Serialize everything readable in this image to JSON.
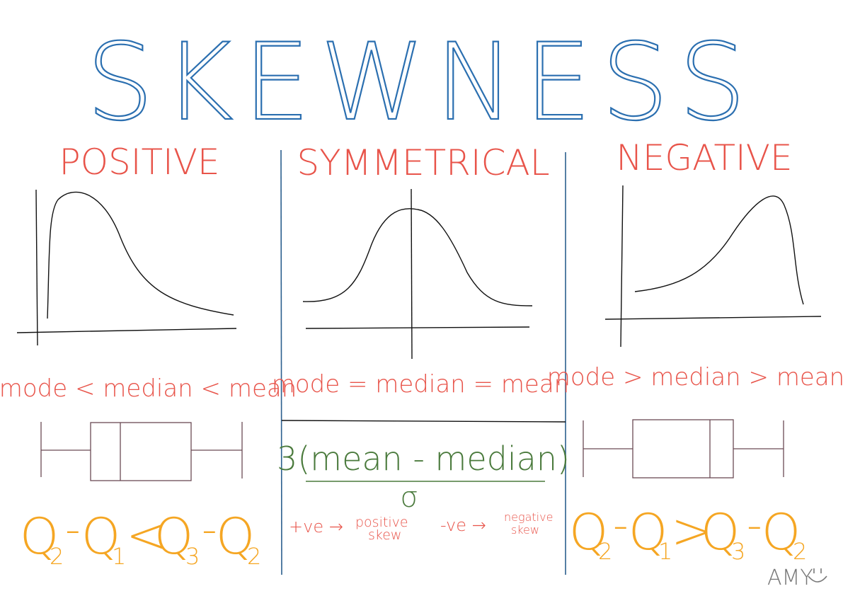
{
  "title": "SKEWNESS",
  "colors": {
    "title": "#2b6fb0",
    "heading": "#e8544a",
    "relation": "#e8544a",
    "quartile": "#f5a623",
    "formula": "#4a7a3c",
    "curve": "#111111",
    "axis": "#111111",
    "divider": "#2b5f8e",
    "boxplot": "#6b4a55",
    "signature": "#777777"
  },
  "columns": [
    {
      "heading": "POSITIVE",
      "relation": "mode < median < mean",
      "quartile": {
        "left_a": "Q",
        "left_a_sub": "2",
        "left_b": "Q",
        "left_b_sub": "1",
        "op": "<",
        "right_a": "Q",
        "right_a_sub": "3",
        "right_b": "Q",
        "right_b_sub": "2"
      }
    },
    {
      "heading": "SYMMETRICAL",
      "relation": "mode = median = mean",
      "formula": {
        "numerator": "3(mean - median)",
        "denominator": "σ"
      },
      "notes": [
        {
          "sign": "+ve →",
          "line1": "positive",
          "line2": "skew"
        },
        {
          "sign": "-ve →",
          "line1": "negative",
          "line2": "skew"
        }
      ]
    },
    {
      "heading": "NEGATIVE",
      "relation": "mode > median > mean",
      "quartile": {
        "left_a": "Q",
        "left_a_sub": "2",
        "left_b": "Q",
        "left_b_sub": "1",
        "op": ">",
        "right_a": "Q",
        "right_a_sub": "3",
        "right_b": "Q",
        "right_b_sub": "2"
      }
    }
  ],
  "signature": "AMY",
  "signature_icon": "smiley-face-icon"
}
